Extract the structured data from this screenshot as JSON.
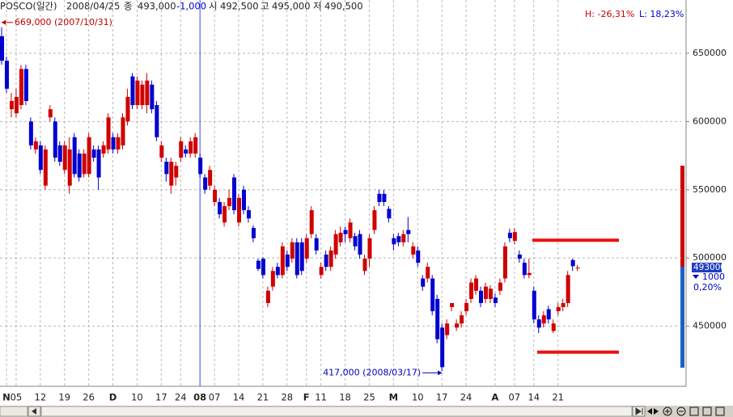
{
  "header": {
    "name": "POSCO(일간)",
    "date": "2008/04/25",
    "close_label": "종",
    "close": "493,000",
    "change": "-1,000",
    "open_label": "시",
    "open": "492,500",
    "high_label": "고",
    "high": "495,000",
    "low_label": "저",
    "low": "490,500"
  },
  "range": {
    "high": "H: -26,31%",
    "low": "L: 18,23%"
  },
  "chart_data": {
    "type": "candlestick",
    "categories": [
      null,
      "N",
      null,
      "05",
      null,
      null,
      null,
      null,
      "12",
      null,
      null,
      null,
      null,
      "19",
      null,
      null,
      null,
      null,
      "26",
      null,
      null,
      null,
      null,
      "D",
      null,
      null,
      null,
      null,
      "10",
      null,
      null,
      null,
      null,
      "17",
      null,
      null,
      null,
      "24",
      null,
      null,
      null,
      "08",
      null,
      null,
      "07",
      null,
      null,
      null,
      null,
      "14",
      null,
      null,
      null,
      null,
      "21",
      null,
      null,
      null,
      null,
      "28",
      null,
      null,
      null,
      "F",
      null,
      null,
      "11",
      null,
      null,
      null,
      null,
      "18",
      null,
      null,
      null,
      null,
      "25",
      null,
      null,
      null,
      null,
      "M",
      null,
      null,
      null,
      null,
      "10",
      null,
      null,
      null,
      null,
      "17",
      null,
      null,
      null,
      null,
      "24",
      null,
      null,
      null,
      null,
      null,
      "A",
      null,
      null,
      null,
      "07",
      null,
      null,
      null,
      "14",
      null,
      null,
      null,
      null,
      "21",
      null,
      null,
      null,
      null
    ],
    "open": [
      662500,
      644500,
      609000,
      606000,
      612000,
      638500,
      600000,
      579500,
      582500,
      553000,
      603000,
      600000,
      582500,
      564500,
      553000,
      588500,
      576500,
      561500,
      561500,
      579500,
      579500,
      576500,
      579500,
      588500,
      579500,
      582500,
      600000,
      633000,
      612000,
      612000,
      612000,
      627000,
      612000,
      573500,
      570500,
      553000,
      559000,
      573500,
      579500,
      576500,
      576500,
      573500,
      559000,
      553000,
      541000,
      541000,
      526000,
      538000,
      559000,
      526000,
      550000,
      535000,
      522000,
      498000,
      499500,
      467000,
      479000,
      493500,
      487500,
      502500,
      499500,
      511500,
      511500,
      499500,
      517500,
      514500,
      487500,
      502500,
      493500,
      502500,
      511500,
      520500,
      514500,
      516000,
      517500,
      490500,
      499500,
      520500,
      547000,
      547000,
      536000,
      514500,
      516000,
      511500,
      520500,
      502500,
      505500,
      485000,
      485000,
      485000,
      470000,
      449000,
      443500,
      464000,
      449000,
      452000,
      461000,
      470000,
      476000,
      476000,
      470000,
      470000,
      471000,
      476000,
      485000,
      518500,
      512500,
      502500,
      496500,
      487500,
      476000,
      455000,
      452000,
      462500,
      446500,
      461000,
      464000,
      467000,
      498500,
      492500
    ],
    "high": [
      669000,
      647500,
      621000,
      624000,
      641500,
      641500,
      603000,
      588500,
      585500,
      582500,
      612000,
      603000,
      585500,
      585500,
      588500,
      591500,
      579500,
      579500,
      591500,
      582500,
      582500,
      585500,
      606000,
      591500,
      591500,
      606000,
      624000,
      635500,
      633000,
      630000,
      635500,
      630000,
      615000,
      585500,
      573500,
      573500,
      570500,
      588500,
      582500,
      588500,
      591500,
      576500,
      561500,
      567500,
      553000,
      544000,
      541000,
      550000,
      561500,
      547000,
      553000,
      538000,
      524000,
      499500,
      500500,
      479000,
      493500,
      496500,
      511500,
      505500,
      514500,
      514500,
      514500,
      517500,
      538000,
      517500,
      496500,
      505500,
      508500,
      520500,
      523000,
      523000,
      529000,
      518500,
      520500,
      502500,
      517500,
      538000,
      550000,
      550000,
      538000,
      517500,
      518500,
      520500,
      530000,
      511500,
      508500,
      487500,
      496500,
      487500,
      473000,
      452000,
      455000,
      467000,
      455000,
      461000,
      470000,
      485000,
      487500,
      479000,
      482000,
      480000,
      474000,
      485000,
      511500,
      521500,
      522000,
      505500,
      499500,
      499500,
      479000,
      458000,
      461000,
      465000,
      455000,
      467000,
      470000,
      490500,
      499500,
      495000
    ],
    "low": [
      641500,
      621000,
      603000,
      603000,
      609000,
      612000,
      579500,
      576500,
      561500,
      550000,
      600000,
      570500,
      567500,
      561500,
      547000,
      559000,
      556000,
      559000,
      559000,
      570500,
      550000,
      573500,
      576500,
      576500,
      576500,
      579500,
      597000,
      609000,
      609000,
      609000,
      606000,
      606000,
      585500,
      570500,
      556000,
      547000,
      553000,
      570500,
      573500,
      573500,
      573500,
      559000,
      547000,
      550000,
      538000,
      529000,
      523000,
      535000,
      532000,
      523000,
      532000,
      526000,
      511500,
      490500,
      485000,
      464000,
      476000,
      485000,
      485000,
      490500,
      496500,
      485000,
      487500,
      496500,
      514500,
      502500,
      485000,
      490500,
      490500,
      499500,
      508500,
      511500,
      511500,
      505500,
      499500,
      487500,
      493500,
      517500,
      538000,
      538000,
      526000,
      505500,
      508500,
      508500,
      511500,
      499500,
      493500,
      476000,
      482000,
      458000,
      437500,
      417000,
      440500,
      461000,
      446500,
      449000,
      458000,
      467000,
      473000,
      464000,
      467000,
      467000,
      464000,
      473000,
      482000,
      511500,
      510000,
      496500,
      485000,
      485000,
      452000,
      445000,
      449000,
      452000,
      445000,
      458000,
      461000,
      464000,
      490500,
      490500
    ],
    "close": [
      644500,
      624000,
      615000,
      618000,
      638500,
      615000,
      582500,
      585500,
      564500,
      579500,
      609000,
      573500,
      570500,
      582500,
      579500,
      561500,
      559000,
      576500,
      588500,
      573500,
      559000,
      582500,
      603000,
      579500,
      588500,
      603000,
      618000,
      612000,
      630000,
      627000,
      630000,
      609000,
      588500,
      582500,
      561500,
      570500,
      567500,
      585500,
      576500,
      585500,
      588500,
      561500,
      550000,
      564500,
      550000,
      532000,
      538000,
      544000,
      535000,
      544000,
      535000,
      529000,
      514500,
      492000,
      487500,
      476000,
      490500,
      487500,
      508500,
      493500,
      511500,
      487500,
      490500,
      514500,
      535000,
      505500,
      493500,
      493500,
      505500,
      517500,
      518500,
      517500,
      526000,
      508500,
      502500,
      499500,
      514500,
      535000,
      541000,
      541000,
      529000,
      510000,
      511500,
      517500,
      517500,
      508500,
      496500,
      479000,
      493500,
      461000,
      440500,
      420000,
      452000,
      467000,
      452000,
      458000,
      467000,
      482000,
      485000,
      467000,
      479000,
      477500,
      467000,
      482000,
      508500,
      514500,
      519000,
      499500,
      487500,
      489000,
      455000,
      449000,
      458000,
      455000,
      452000,
      464000,
      467000,
      487500,
      494000,
      493000
    ],
    "up_color": "#d00000",
    "down_color": "#0000d0",
    "ylim": [
      406000,
      689000
    ],
    "yticks": [
      450000,
      500000,
      550000,
      600000,
      650000
    ],
    "grid": true,
    "year_divider": 41,
    "annotations": [
      {
        "text": "669,000 (2007/10/31)",
        "value": 669000,
        "color": "#c00000"
      },
      {
        "text": "417,000 (2008/03/17)",
        "value": 417000,
        "color": "#0000c0"
      }
    ],
    "hlines": [
      {
        "value": 513000,
        "color": "#ee1111"
      },
      {
        "value": 431000,
        "color": "#ee1111"
      }
    ],
    "last": {
      "value": 493000,
      "change": "1000",
      "change_pct": "0,20%",
      "color": "#0000c0"
    }
  }
}
